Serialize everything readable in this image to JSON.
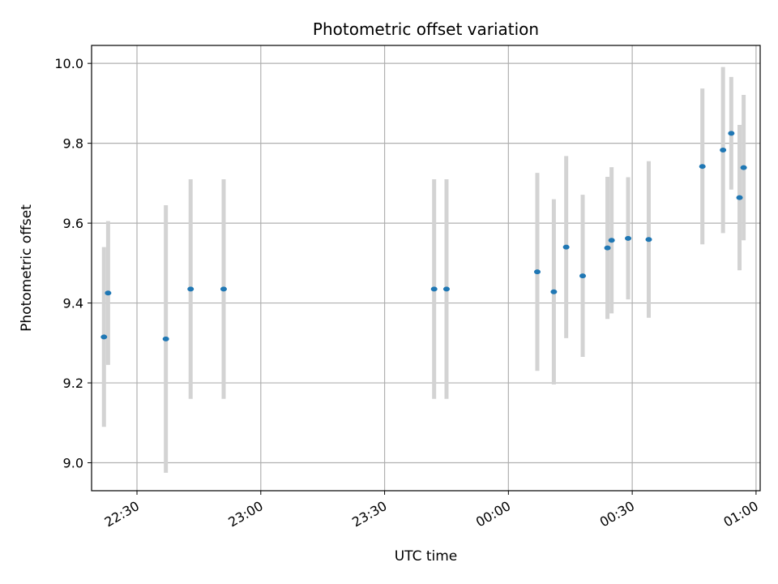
{
  "chart_data": {
    "type": "scatter",
    "title": "Photometric offset variation",
    "xlabel": "UTC time",
    "ylabel": "Photometric offset",
    "x_unit": "HH:MM (UTC)",
    "xlim": [
      "22:19",
      "01:01"
    ],
    "ylim": [
      8.93,
      10.045
    ],
    "x_ticks": [
      "22:30",
      "23:00",
      "23:30",
      "00:00",
      "00:30",
      "01:00"
    ],
    "y_ticks": [
      9.0,
      9.2,
      9.4,
      9.6,
      9.8,
      10.0
    ],
    "y_tick_labels": [
      "9.0",
      "9.2",
      "9.4",
      "9.6",
      "9.8",
      "10.0"
    ],
    "grid": true,
    "colors": {
      "point": "#1f77b4",
      "errorbar": "#d3d3d3",
      "grid": "#b0b0b0"
    },
    "series": [
      {
        "points": [
          {
            "x": "22:22",
            "y": 9.315,
            "yerr": 0.225
          },
          {
            "x": "22:23",
            "y": 9.425,
            "yerr": 0.18
          },
          {
            "x": "22:37",
            "y": 9.31,
            "yerr": 0.335
          },
          {
            "x": "22:43",
            "y": 9.435,
            "yerr": 0.275
          },
          {
            "x": "22:51",
            "y": 9.435,
            "yerr": 0.275
          },
          {
            "x": "23:42",
            "y": 9.435,
            "yerr": 0.275
          },
          {
            "x": "23:45",
            "y": 9.435,
            "yerr": 0.275
          },
          {
            "x": "00:07",
            "y": 9.478,
            "yerr": 0.248
          },
          {
            "x": "00:11",
            "y": 9.428,
            "yerr": 0.232
          },
          {
            "x": "00:14",
            "y": 9.54,
            "yerr": 0.228
          },
          {
            "x": "00:18",
            "y": 9.468,
            "yerr": 0.203
          },
          {
            "x": "00:24",
            "y": 9.538,
            "yerr": 0.178
          },
          {
            "x": "00:25",
            "y": 9.557,
            "yerr": 0.183
          },
          {
            "x": "00:29",
            "y": 9.562,
            "yerr": 0.153
          },
          {
            "x": "00:34",
            "y": 9.559,
            "yerr": 0.196
          },
          {
            "x": "00:47",
            "y": 9.742,
            "yerr": 0.195
          },
          {
            "x": "00:52",
            "y": 9.783,
            "yerr": 0.208
          },
          {
            "x": "00:54",
            "y": 9.825,
            "yerr": 0.141
          },
          {
            "x": "00:56",
            "y": 9.664,
            "yerr": 0.182
          },
          {
            "x": "00:57",
            "y": 9.739,
            "yerr": 0.182
          }
        ]
      }
    ]
  }
}
